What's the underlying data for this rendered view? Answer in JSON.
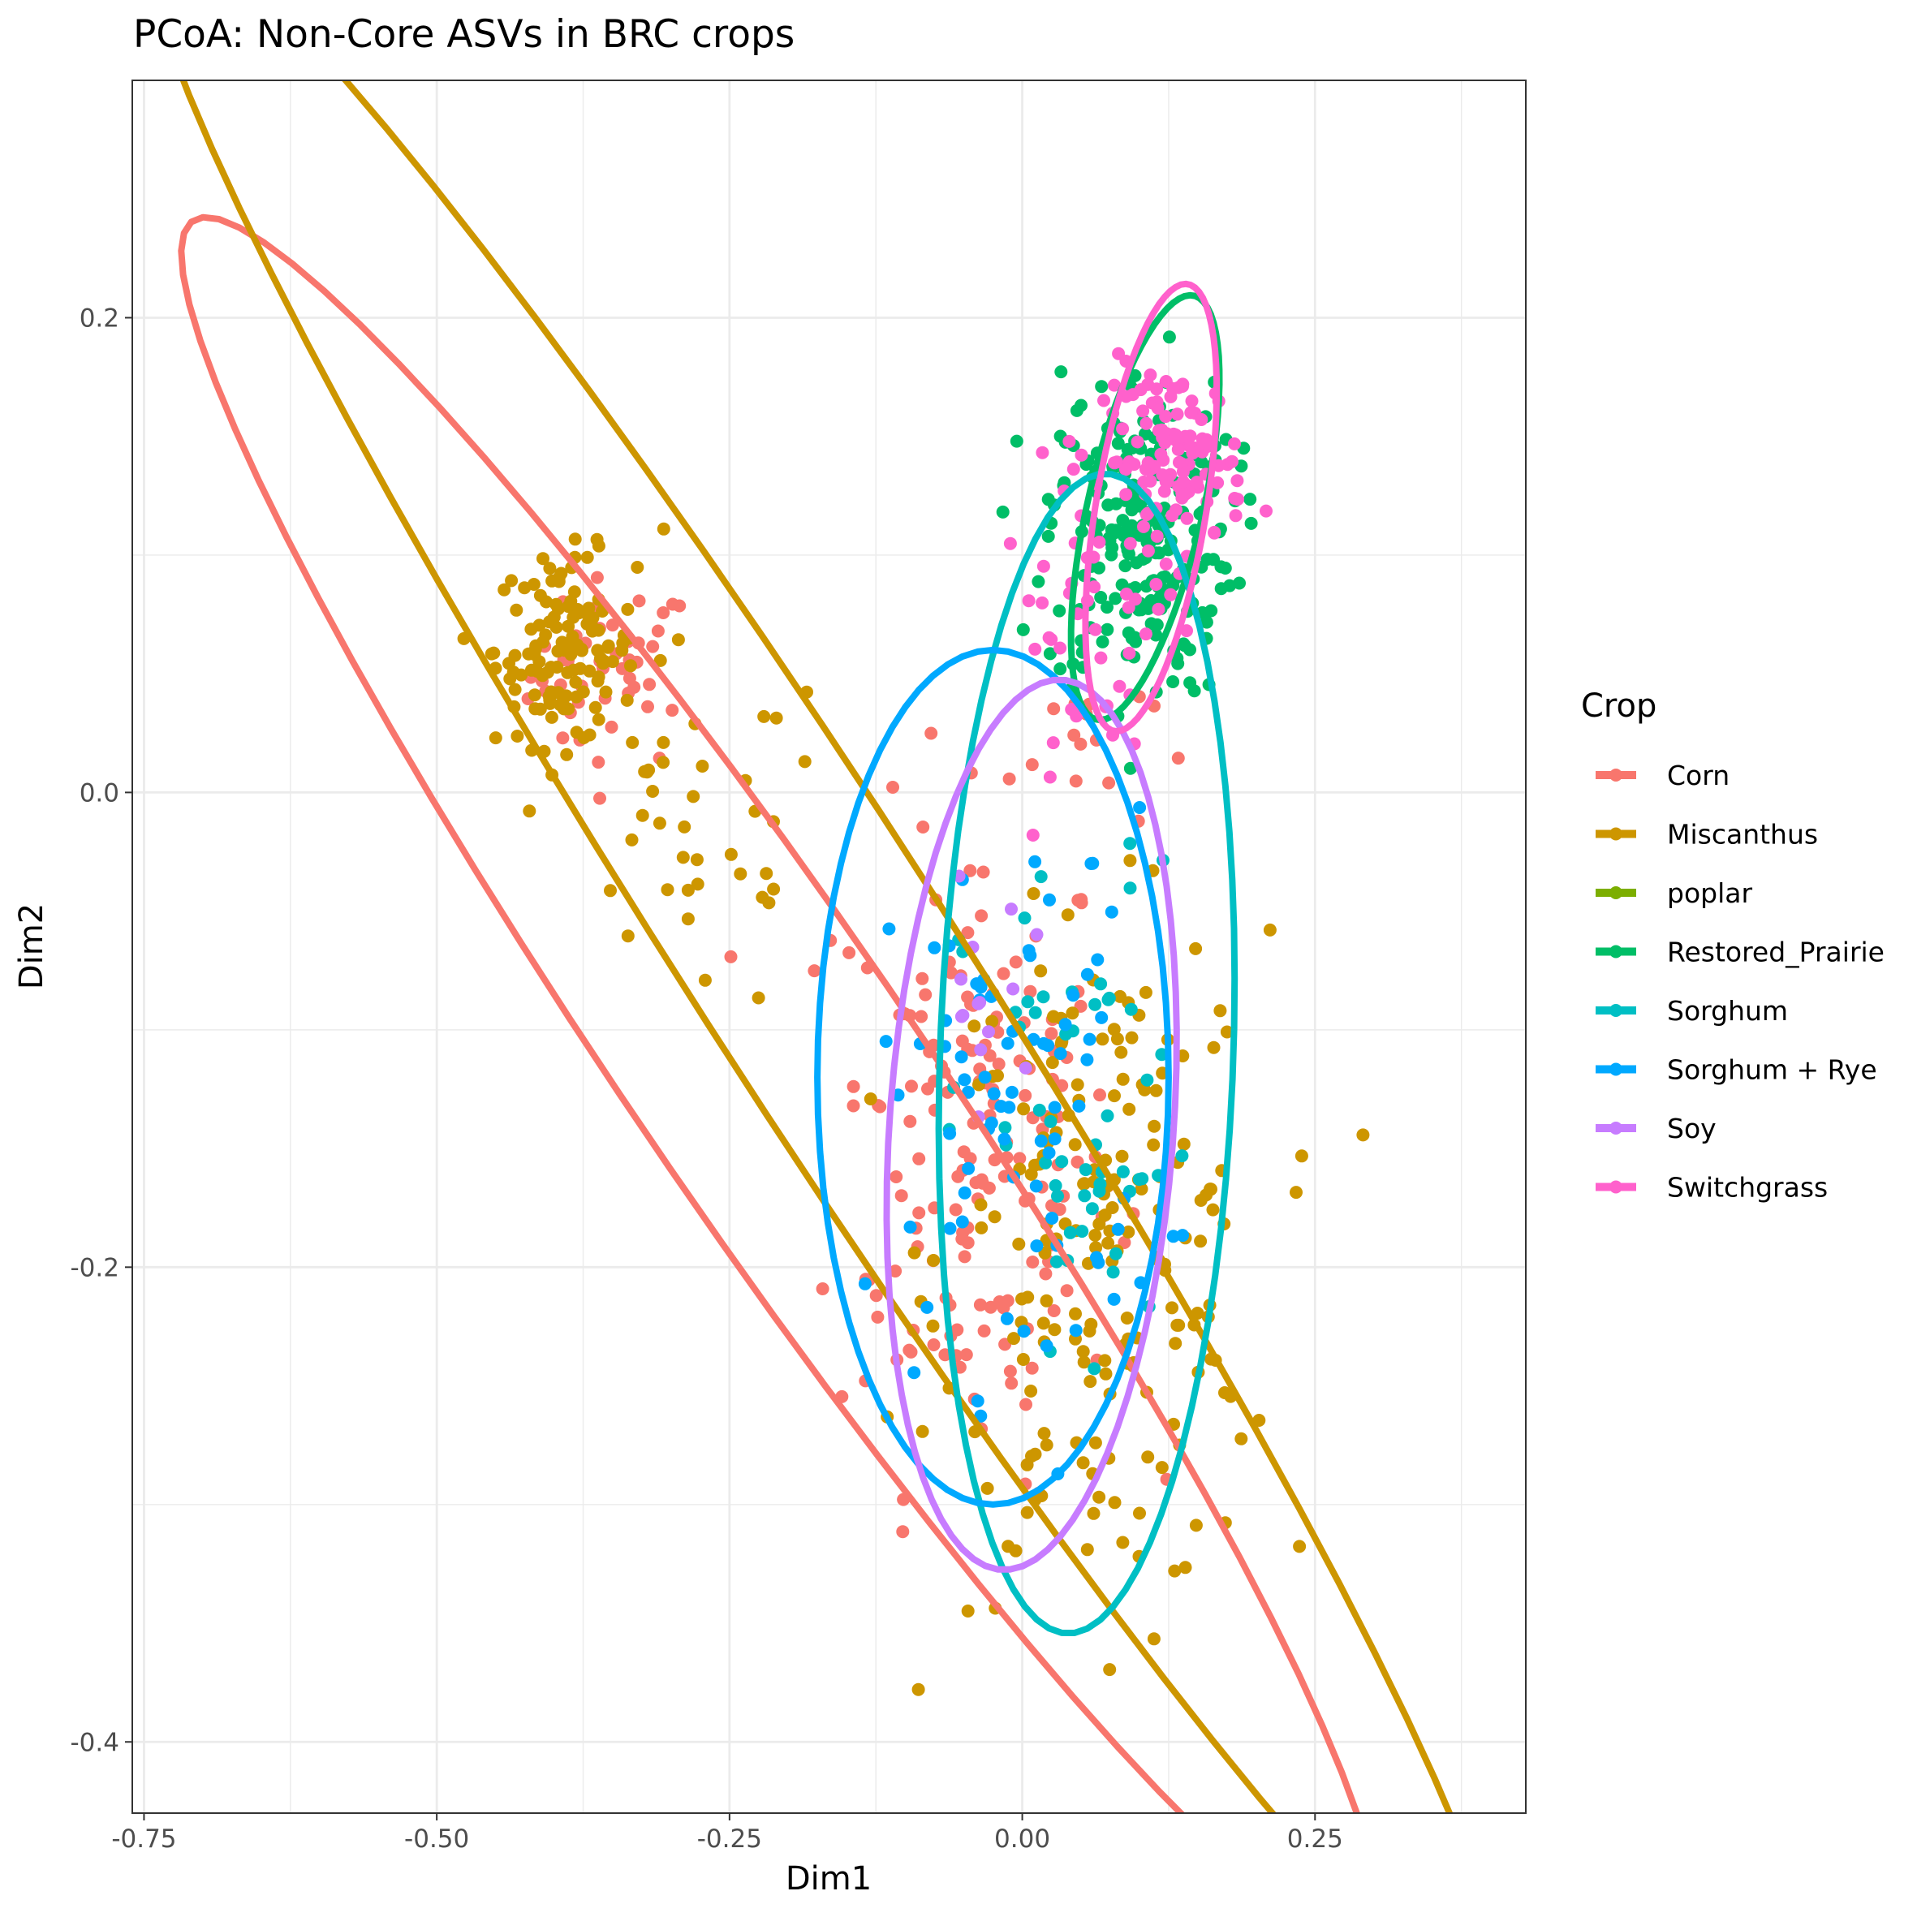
{
  "chart_data": {
    "type": "scatter",
    "title": "PCoA: Non-Core ASVs in BRC crops",
    "xlabel": "Dim1",
    "ylabel": "Dim2",
    "xlim": [
      -0.76,
      0.43
    ],
    "ylim": [
      -0.43,
      0.3
    ],
    "x_ticks": [
      {
        "value": -0.75,
        "label": "-0.75"
      },
      {
        "value": -0.5,
        "label": "-0.50"
      },
      {
        "value": -0.25,
        "label": "-0.25"
      },
      {
        "value": 0.0,
        "label": "0.00"
      },
      {
        "value": 0.25,
        "label": "0.25"
      }
    ],
    "y_ticks": [
      {
        "value": 0.2,
        "label": "0.2"
      },
      {
        "value": 0.0,
        "label": "0.0"
      },
      {
        "value": -0.2,
        "label": "-0.2"
      },
      {
        "value": -0.4,
        "label": "-0.4"
      }
    ],
    "grid": true,
    "legend": {
      "title": "Crop",
      "position": "right"
    },
    "series": [
      {
        "name": "Corn",
        "color": "#F8766D",
        "ellipse": {
          "cx": -0.208,
          "cy": -0.12,
          "a": 0.62,
          "b": 0.085,
          "angle_deg": -35
        },
        "clusters": [
          {
            "cx": -0.35,
            "cy": 0.05,
            "sx": 0.035,
            "sy": 0.02,
            "n": 45
          },
          {
            "cx": -0.04,
            "cy": -0.15,
            "sx": 0.06,
            "sy": 0.07,
            "n": 170
          },
          {
            "cx": 0.05,
            "cy": 0.02,
            "sx": 0.03,
            "sy": 0.02,
            "n": 15
          }
        ]
      },
      {
        "name": "Miscanthus",
        "color": "#CD9600",
        "ellipse": {
          "cx": -0.17,
          "cy": -0.072,
          "a": 0.72,
          "b": 0.08,
          "angle_deg": -37
        },
        "clusters": [
          {
            "cx": -0.39,
            "cy": 0.06,
            "sx": 0.03,
            "sy": 0.02,
            "n": 130
          },
          {
            "cx": -0.28,
            "cy": -0.02,
            "sx": 0.06,
            "sy": 0.04,
            "n": 40
          },
          {
            "cx": 0.07,
            "cy": -0.2,
            "sx": 0.07,
            "sy": 0.07,
            "n": 200
          }
        ]
      },
      {
        "name": "poplar",
        "color": "#7CAE00",
        "clusters": []
      },
      {
        "name": "Restored_Prairie",
        "color": "#00BE67",
        "ellipse": {
          "cx": 0.105,
          "cy": 0.12,
          "a": 0.1,
          "b": 0.045,
          "angle_deg": 60
        },
        "clusters": [
          {
            "cx": 0.1,
            "cy": 0.11,
            "sx": 0.04,
            "sy": 0.035,
            "n": 230
          }
        ]
      },
      {
        "name": "Sorghum",
        "color": "#00BFC4",
        "ellipse": {
          "cx": 0.055,
          "cy": -0.11,
          "a": 0.245,
          "b": 0.125,
          "angle_deg": 85
        },
        "clusters": [
          {
            "cx": 0.05,
            "cy": -0.15,
            "sx": 0.05,
            "sy": 0.06,
            "n": 55
          }
        ]
      },
      {
        "name": "Sorghum + Rye",
        "color": "#00A9FF",
        "ellipse": {
          "cx": -0.025,
          "cy": -0.12,
          "a": 0.15,
          "b": 0.18,
          "angle_deg": 0
        },
        "clusters": [
          {
            "cx": 0.0,
            "cy": -0.13,
            "sx": 0.06,
            "sy": 0.06,
            "n": 80
          }
        ]
      },
      {
        "name": "Soy",
        "color": "#C77CFF",
        "ellipse": {
          "cx": 0.008,
          "cy": -0.14,
          "a": 0.19,
          "b": 0.12,
          "angle_deg": 78
        },
        "clusters": [
          {
            "cx": -0.04,
            "cy": -0.09,
            "sx": 0.02,
            "sy": 0.025,
            "n": 14
          }
        ]
      },
      {
        "name": "Switchgrass",
        "color": "#FF61CC",
        "ellipse": {
          "cx": 0.11,
          "cy": 0.12,
          "a": 0.1,
          "b": 0.045,
          "angle_deg": 68
        },
        "clusters": [
          {
            "cx": 0.13,
            "cy": 0.14,
            "sx": 0.03,
            "sy": 0.02,
            "n": 120
          },
          {
            "cx": 0.06,
            "cy": 0.07,
            "sx": 0.04,
            "sy": 0.03,
            "n": 40
          }
        ]
      }
    ]
  }
}
